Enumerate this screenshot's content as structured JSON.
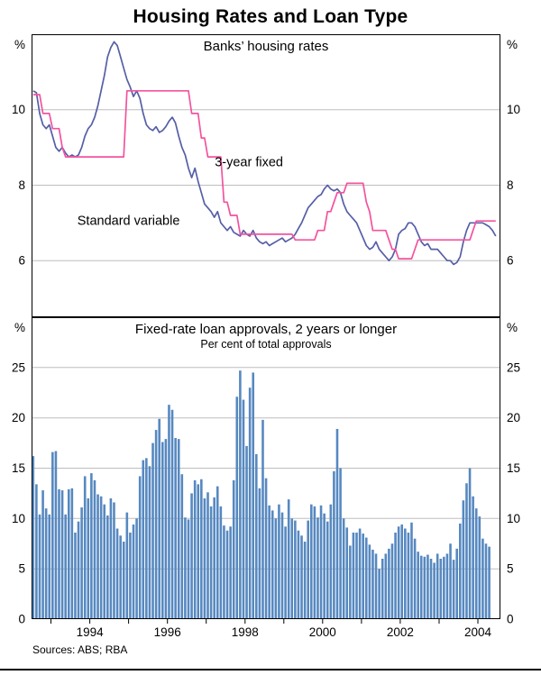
{
  "title": "Housing Rates and Loan Type",
  "footer": {
    "sources": "Sources: ABS; RBA"
  },
  "colors": {
    "grid": "#bdbdbd",
    "axis": "#000000",
    "line_3yr_fixed": "#565FA6",
    "line_standard_variable": "#F3539E",
    "bars": "#5688C0"
  },
  "x_axis": {
    "tick_years": [
      1993,
      1994,
      1995,
      1996,
      1997,
      1998,
      1999,
      2000,
      2001,
      2002,
      2003,
      2004
    ],
    "label_years": [
      1994,
      1996,
      1998,
      2000,
      2002,
      2004
    ]
  },
  "chart_data": [
    {
      "type": "line",
      "title": "Banks’ housing rates",
      "unit_label": "%",
      "xlim": [
        1992.5,
        2004.58
      ],
      "ylim": [
        4.5,
        12
      ],
      "yticks": [
        6,
        8,
        10
      ],
      "x_start": 1992.542,
      "x_step": 0.08333,
      "series": [
        {
          "name": "3-year fixed",
          "color": "#565FA6",
          "values": [
            10.5,
            10.45,
            9.9,
            9.6,
            9.5,
            9.6,
            9.3,
            9.0,
            8.9,
            9.0,
            8.85,
            8.75,
            8.8,
            8.75,
            8.8,
            9.0,
            9.3,
            9.5,
            9.6,
            9.8,
            10.1,
            10.5,
            10.9,
            11.4,
            11.65,
            11.8,
            11.7,
            11.4,
            11.1,
            10.8,
            10.6,
            10.35,
            10.5,
            10.3,
            9.9,
            9.6,
            9.5,
            9.45,
            9.55,
            9.4,
            9.45,
            9.55,
            9.7,
            9.8,
            9.65,
            9.3,
            9.0,
            8.8,
            8.45,
            8.2,
            8.45,
            8.1,
            7.8,
            7.5,
            7.4,
            7.3,
            7.15,
            7.3,
            7.0,
            6.9,
            6.8,
            6.9,
            6.75,
            6.7,
            6.65,
            6.8,
            6.7,
            6.65,
            6.8,
            6.6,
            6.5,
            6.45,
            6.5,
            6.4,
            6.45,
            6.5,
            6.55,
            6.6,
            6.5,
            6.55,
            6.6,
            6.7,
            6.85,
            7.0,
            7.2,
            7.4,
            7.5,
            7.6,
            7.7,
            7.75,
            7.9,
            8.0,
            7.9,
            7.85,
            7.9,
            7.8,
            7.5,
            7.3,
            7.2,
            7.1,
            7.0,
            6.8,
            6.6,
            6.4,
            6.3,
            6.35,
            6.5,
            6.3,
            6.2,
            6.1,
            6.0,
            6.1,
            6.3,
            6.7,
            6.8,
            6.85,
            7.0,
            7.0,
            6.9,
            6.7,
            6.5,
            6.4,
            6.45,
            6.3,
            6.3,
            6.3,
            6.2,
            6.1,
            6.0,
            6.0,
            5.9,
            5.95,
            6.1,
            6.5,
            6.8,
            7.0,
            7.0,
            7.0,
            7.0,
            7.0,
            6.95,
            6.9,
            6.8,
            6.65
          ]
        },
        {
          "name": "Standard variable",
          "color": "#F3539E",
          "values": [
            10.4,
            10.4,
            10.4,
            9.9,
            9.9,
            9.9,
            9.5,
            9.5,
            9.5,
            9.0,
            8.75,
            8.75,
            8.75,
            8.75,
            8.75,
            8.75,
            8.75,
            8.75,
            8.75,
            8.75,
            8.75,
            8.75,
            8.75,
            8.75,
            8.75,
            8.75,
            8.75,
            8.75,
            8.75,
            10.5,
            10.5,
            10.5,
            10.5,
            10.5,
            10.5,
            10.5,
            10.5,
            10.5,
            10.5,
            10.5,
            10.5,
            10.5,
            10.5,
            10.5,
            10.5,
            10.5,
            10.5,
            10.5,
            10.5,
            9.9,
            9.9,
            9.9,
            9.25,
            9.25,
            8.75,
            8.75,
            8.75,
            8.75,
            8.75,
            7.55,
            7.55,
            7.2,
            7.2,
            7.2,
            6.7,
            6.7,
            6.7,
            6.7,
            6.7,
            6.7,
            6.7,
            6.7,
            6.7,
            6.7,
            6.7,
            6.7,
            6.7,
            6.7,
            6.7,
            6.7,
            6.7,
            6.55,
            6.55,
            6.55,
            6.55,
            6.55,
            6.55,
            6.55,
            6.8,
            6.8,
            6.8,
            7.3,
            7.3,
            7.55,
            7.8,
            7.8,
            7.8,
            8.05,
            8.05,
            8.05,
            8.05,
            8.05,
            8.05,
            7.55,
            7.3,
            6.8,
            6.8,
            6.8,
            6.8,
            6.8,
            6.55,
            6.3,
            6.3,
            6.05,
            6.05,
            6.05,
            6.05,
            6.05,
            6.3,
            6.55,
            6.55,
            6.55,
            6.55,
            6.55,
            6.55,
            6.55,
            6.55,
            6.55,
            6.55,
            6.55,
            6.55,
            6.55,
            6.55,
            6.55,
            6.55,
            6.55,
            6.8,
            7.05,
            7.05,
            7.05,
            7.05,
            7.05,
            7.05,
            7.05
          ]
        }
      ],
      "annotations": [
        {
          "text": "3-year fixed",
          "x": 1998.1,
          "y": 8.5,
          "color": "#565FA6"
        },
        {
          "text": "Standard variable",
          "x": 1995.0,
          "y": 6.95,
          "color": "#F3539E"
        }
      ]
    },
    {
      "type": "bar",
      "title": "Fixed-rate loan approvals, 2 years or longer",
      "subtitle": "Per cent of total approvals",
      "unit_label": "%",
      "xlim": [
        1992.5,
        2004.58
      ],
      "ylim": [
        0,
        30
      ],
      "yticks": [
        0,
        5,
        10,
        15,
        20,
        25
      ],
      "x_start": 1992.542,
      "x_step": 0.08333,
      "bar_color": "#5688C0",
      "values": [
        16.2,
        13.4,
        10.4,
        12.8,
        11.0,
        10.4,
        16.6,
        16.7,
        12.9,
        12.8,
        10.4,
        12.9,
        13.0,
        8.6,
        9.7,
        11.1,
        14.2,
        12.0,
        14.5,
        13.8,
        12.4,
        12.2,
        11.4,
        10.3,
        12.0,
        11.6,
        9.0,
        8.3,
        7.7,
        10.6,
        8.6,
        9.4,
        10.0,
        14.2,
        15.8,
        16.0,
        15.2,
        17.5,
        18.8,
        19.9,
        17.6,
        17.9,
        21.3,
        20.8,
        18.0,
        17.9,
        14.4,
        10.1,
        9.9,
        12.5,
        13.8,
        13.4,
        13.9,
        12.0,
        12.6,
        11.2,
        12.1,
        13.2,
        11.2,
        9.3,
        8.8,
        9.2,
        13.8,
        22.1,
        24.7,
        21.8,
        17.2,
        23.0,
        24.5,
        16.4,
        13.0,
        19.8,
        14.0,
        11.3,
        10.8,
        10.0,
        11.4,
        10.6,
        9.2,
        11.9,
        10.0,
        9.8,
        8.8,
        8.3,
        7.7,
        9.8,
        11.4,
        11.2,
        10.1,
        11.3,
        10.5,
        9.7,
        11.4,
        14.7,
        18.9,
        15.0,
        10.0,
        9.1,
        7.3,
        8.6,
        8.6,
        9.0,
        8.5,
        8.1,
        7.4,
        6.9,
        6.5,
        5.0,
        6.0,
        6.5,
        7.0,
        7.5,
        8.6,
        9.2,
        9.4,
        9.0,
        8.6,
        9.6,
        8.0,
        6.7,
        6.3,
        6.2,
        6.4,
        6.0,
        5.6,
        6.5,
        6.0,
        6.2,
        6.5,
        7.5,
        5.9,
        7.0,
        9.5,
        11.8,
        13.5,
        15.0,
        12.2,
        11.0,
        10.2,
        8.0,
        7.5,
        7.2
      ]
    }
  ]
}
